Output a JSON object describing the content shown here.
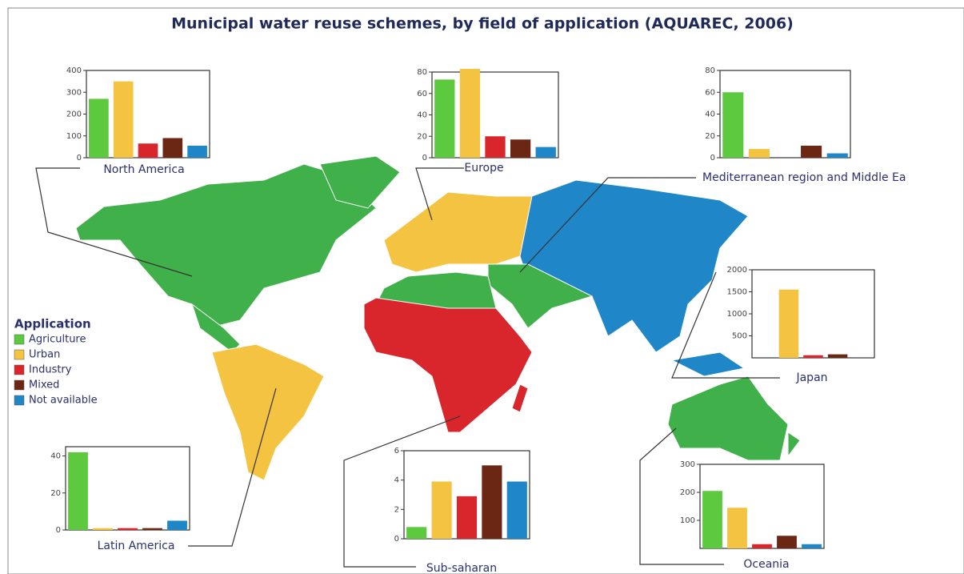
{
  "title": "Municipal water reuse schemes, by field of application (AQUAREC, 2006)",
  "legend": {
    "title": "Application",
    "items": [
      {
        "name": "Agriculture",
        "color": "#5cc93e"
      },
      {
        "name": "Urban",
        "color": "#f5c342"
      },
      {
        "name": "Industry",
        "color": "#d8262c"
      },
      {
        "name": "Mixed",
        "color": "#6b2614"
      },
      {
        "name": "Not available",
        "color": "#1f86c8"
      }
    ]
  },
  "chart_data": [
    {
      "type": "bar",
      "title": "North America",
      "values": [
        270,
        350,
        65,
        90,
        55
      ],
      "ylim": [
        0,
        400
      ],
      "yticks": [
        0,
        100,
        200,
        300,
        400
      ]
    },
    {
      "type": "bar",
      "title": "Europe",
      "values": [
        73,
        83,
        20,
        17,
        10
      ],
      "ylim": [
        0,
        80
      ],
      "yticks": [
        0,
        20,
        40,
        60,
        80
      ]
    },
    {
      "type": "bar",
      "title": "Mediterranean region and Middle Ea",
      "values": [
        60,
        8,
        0,
        11,
        4
      ],
      "ylim": [
        0,
        80
      ],
      "yticks": [
        0,
        20,
        40,
        60,
        80
      ]
    },
    {
      "type": "bar",
      "title": "Japan",
      "values": [
        0,
        1550,
        60,
        80,
        0
      ],
      "ylim": [
        0,
        2000
      ],
      "yticks": [
        500,
        1000,
        1500,
        2000
      ]
    },
    {
      "type": "bar",
      "title": "Latin America",
      "values": [
        42,
        1,
        1,
        1,
        5
      ],
      "ylim": [
        0,
        45
      ],
      "yticks": [
        0,
        20,
        40
      ]
    },
    {
      "type": "bar",
      "title": "Sub-saharan",
      "values": [
        0.8,
        3.9,
        2.9,
        5,
        3.9
      ],
      "ylim": [
        0,
        6
      ],
      "yticks": [
        0,
        2,
        4,
        6
      ]
    },
    {
      "type": "bar",
      "title": "Oceania",
      "values": [
        205,
        145,
        15,
        45,
        15
      ],
      "ylim": [
        0,
        300
      ],
      "yticks": [
        100,
        200,
        300
      ]
    }
  ]
}
